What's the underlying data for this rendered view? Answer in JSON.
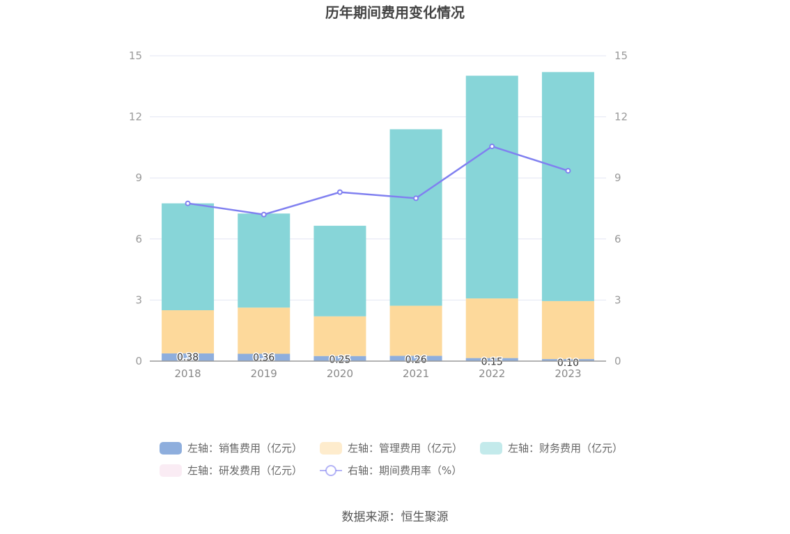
{
  "chart_data": {
    "type": "bar",
    "title": "历年期间费用变化情况",
    "categories": [
      "2018",
      "2019",
      "2020",
      "2021",
      "2022",
      "2023"
    ],
    "y_left": {
      "ylim": [
        0,
        15
      ],
      "ticks": [
        0,
        3,
        6,
        9,
        12,
        15
      ]
    },
    "y_right": {
      "ylim": [
        0,
        15
      ],
      "ticks": [
        0,
        3,
        6,
        9,
        12,
        15
      ]
    },
    "grid": true,
    "legend_position": "bottom",
    "series": [
      {
        "name": "左轴：销售费用（亿元）",
        "type": "bar",
        "axis": "left",
        "stack": "cost",
        "color": "#8eaedd",
        "values": [
          0.38,
          0.36,
          0.25,
          0.26,
          0.15,
          0.1
        ],
        "labels": [
          "0.38",
          "0.36",
          "0.25",
          "0.26",
          "0.15",
          "0.10"
        ]
      },
      {
        "name": "左轴：管理费用（亿元）",
        "type": "bar",
        "axis": "left",
        "stack": "cost",
        "color": "#fdd99b",
        "values": [
          2.12,
          2.27,
          1.95,
          2.46,
          2.93,
          2.85
        ]
      },
      {
        "name": "左轴：财务费用（亿元）",
        "type": "bar",
        "axis": "left",
        "stack": "cost",
        "color": "#87d5d8",
        "values": [
          5.25,
          4.62,
          4.45,
          8.67,
          10.94,
          11.25
        ]
      },
      {
        "name": "左轴：研发费用（亿元）",
        "type": "bar",
        "axis": "left",
        "stack": "cost",
        "color": "#f5d9ea",
        "values": [
          0,
          0,
          0,
          0,
          0,
          0
        ]
      },
      {
        "name": "右轴：期间费用率（%）",
        "type": "line",
        "axis": "right",
        "color": "#8080f0",
        "values": [
          7.75,
          7.2,
          8.3,
          8.0,
          10.55,
          9.35
        ]
      }
    ]
  },
  "source": "数据来源：恒生聚源"
}
